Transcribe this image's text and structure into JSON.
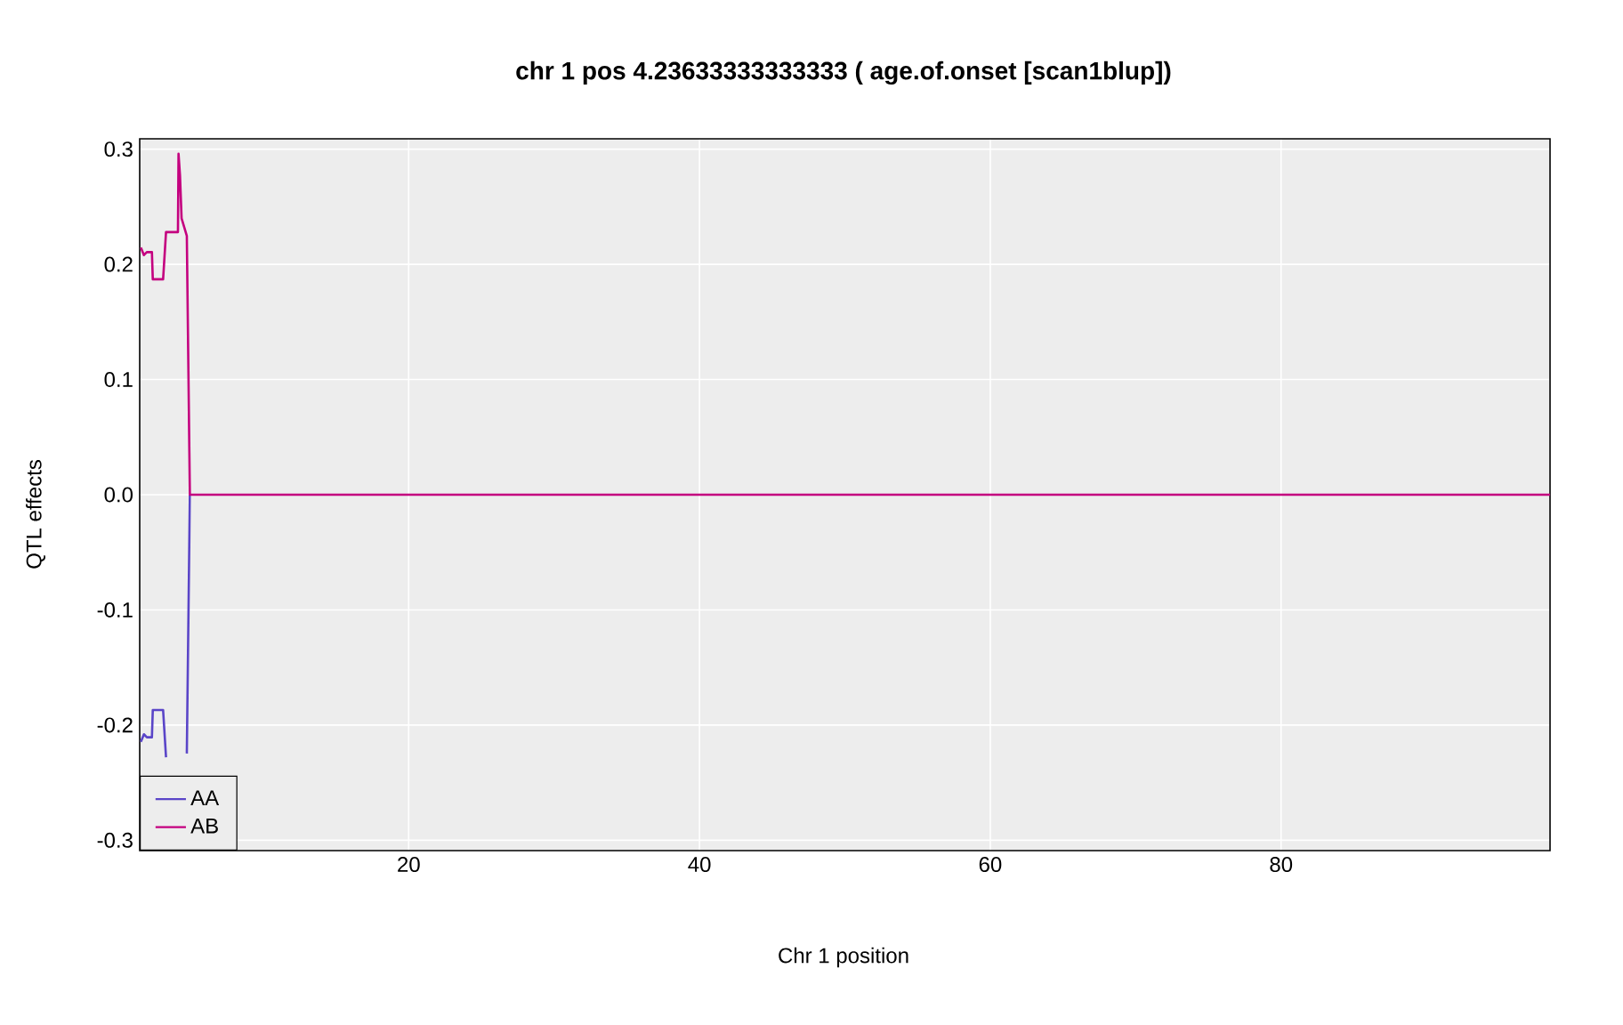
{
  "chart_data": {
    "type": "line",
    "title": "chr 1 pos 4.23633333333333 ( age.of.onset  [scan1blup])",
    "xlabel": "Chr 1 position",
    "ylabel": "QTL effects",
    "xlim": [
      1.5,
      98.5
    ],
    "ylim": [
      -0.309,
      0.309
    ],
    "xticks": [
      20,
      40,
      60,
      80
    ],
    "yticks": [
      {
        "value": -0.3,
        "label": "-0.3"
      },
      {
        "value": -0.2,
        "label": "-0.2"
      },
      {
        "value": -0.1,
        "label": "-0.1"
      },
      {
        "value": 0,
        "label": "0.0"
      },
      {
        "value": 0.1,
        "label": "0.1"
      },
      {
        "value": 0.2,
        "label": "0.2"
      },
      {
        "value": 0.3,
        "label": "0.3"
      }
    ],
    "grid": true,
    "legend": "bottom left",
    "x": [
      1.58,
      1.79,
      1.99,
      2.34,
      2.4,
      3.11,
      3.31,
      4.13,
      4.17,
      4.27,
      4.38,
      4.74,
      4.95,
      98.5
    ],
    "series": [
      {
        "name": "AA",
        "color": "#5a45c8",
        "values": [
          -0.2145,
          -0.208,
          -0.2106,
          -0.2106,
          -0.187,
          -0.187,
          -0.228,
          null,
          null,
          null,
          null,
          -0.2247,
          0,
          null
        ]
      },
      {
        "name": "AB",
        "color": "#c4007f",
        "values": [
          0.2145,
          0.208,
          0.2106,
          0.2106,
          0.187,
          0.187,
          0.228,
          0.228,
          0.296,
          0.2775,
          0.24,
          0.2247,
          0,
          0
        ]
      }
    ]
  }
}
